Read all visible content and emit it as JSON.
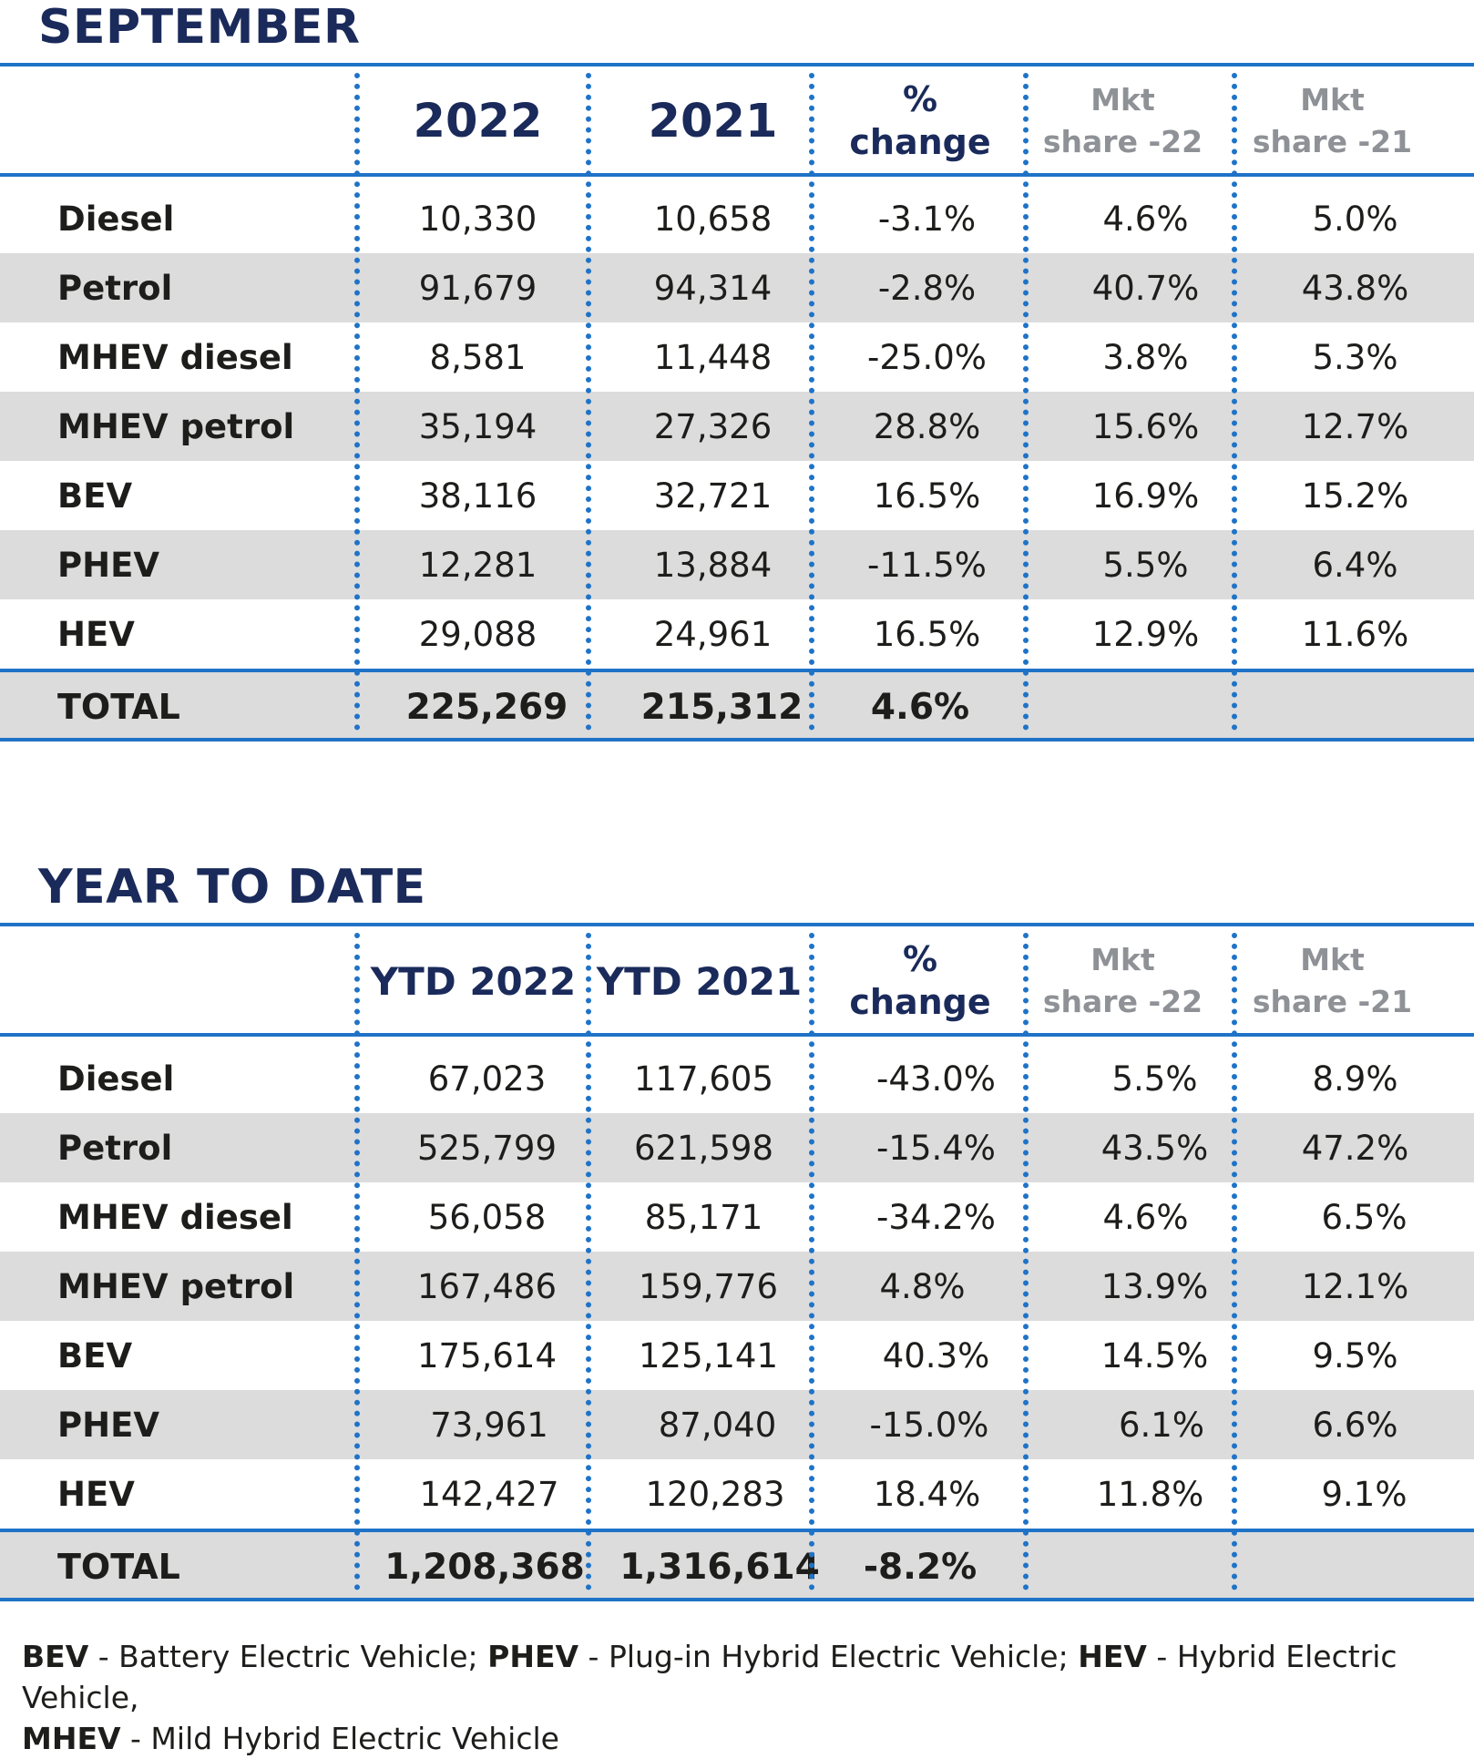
{
  "sections": [
    {
      "title": "SEPTEMBER",
      "headers": {
        "col1": "2022",
        "col2": "2021",
        "change_line1": "%",
        "change_line2": "change",
        "mkt22_line1": "Mkt",
        "mkt22_line2": "share -22",
        "mkt21_line1": "Mkt",
        "mkt21_line2": "share -21"
      },
      "rows": [
        {
          "label": "Diesel",
          "v2022": "10,330",
          "v2021": "10,658",
          "change": "-3.1%",
          "mkt22": "4.6%",
          "mkt21": "5.0%"
        },
        {
          "label": "Petrol",
          "v2022": "91,679",
          "v2021": "94,314",
          "change": "-2.8%",
          "mkt22": "40.7%",
          "mkt21": "43.8%"
        },
        {
          "label": "MHEV diesel",
          "v2022": "8,581",
          "v2021": "11,448",
          "change": "-25.0%",
          "mkt22": "3.8%",
          "mkt21": "5.3%"
        },
        {
          "label": "MHEV petrol",
          "v2022": "35,194",
          "v2021": "27,326",
          "change": "28.8%",
          "mkt22": "15.6%",
          "mkt21": "12.7%"
        },
        {
          "label": "BEV",
          "v2022": "38,116",
          "v2021": "32,721",
          "change": "16.5%",
          "mkt22": "16.9%",
          "mkt21": "15.2%"
        },
        {
          "label": "PHEV",
          "v2022": "12,281",
          "v2021": "13,884",
          "change": "-11.5%",
          "mkt22": "5.5%",
          "mkt21": "6.4%"
        },
        {
          "label": "HEV",
          "v2022": "29,088",
          "v2021": "24,961",
          "change": "16.5%",
          "mkt22": "12.9%",
          "mkt21": "11.6%"
        }
      ],
      "total": {
        "label": "TOTAL",
        "v2022": "225,269",
        "v2021": "215,312",
        "change": "4.6%"
      }
    },
    {
      "title": "YEAR TO DATE",
      "headers": {
        "col1": "YTD 2022",
        "col2": "YTD 2021",
        "change_line1": "%",
        "change_line2": "change",
        "mkt22_line1": "Mkt",
        "mkt22_line2": "share -22",
        "mkt21_line1": "Mkt",
        "mkt21_line2": "share -21"
      },
      "rows": [
        {
          "label": "Diesel",
          "v2022": "67,023",
          "v2021": "117,605",
          "change": "-43.0%",
          "mkt22": "5.5%",
          "mkt21": "8.9%"
        },
        {
          "label": "Petrol",
          "v2022": "525,799",
          "v2021": "621,598",
          "change": "-15.4%",
          "mkt22": "43.5%",
          "mkt21": "47.2%"
        },
        {
          "label": "MHEV diesel",
          "v2022": "56,058",
          "v2021": "85,171",
          "change": "-34.2%",
          "mkt22": "4.6%",
          "mkt21": "6.5%"
        },
        {
          "label": "MHEV petrol",
          "v2022": "167,486",
          "v2021": "159,776",
          "change": "4.8%",
          "mkt22": "13.9%",
          "mkt21": "12.1%"
        },
        {
          "label": "BEV",
          "v2022": "175,614",
          "v2021": "125,141",
          "change": "40.3%",
          "mkt22": "14.5%",
          "mkt21": "9.5%"
        },
        {
          "label": "PHEV",
          "v2022": "73,961",
          "v2021": "87,040",
          "change": "-15.0%",
          "mkt22": "6.1%",
          "mkt21": "6.6%"
        },
        {
          "label": "HEV",
          "v2022": "142,427",
          "v2021": "120,283",
          "change": "18.4%",
          "mkt22": "11.8%",
          "mkt21": "9.1%"
        }
      ],
      "total": {
        "label": "TOTAL",
        "v2022": "1,208,368",
        "v2021": "1,316,614",
        "change": "-8.2%"
      }
    }
  ],
  "footnote": {
    "bev_abbr": "BEV",
    "bev_text": " - Battery Electric Vehicle; ",
    "phev_abbr": "PHEV",
    "phev_text": " - Plug-in Hybrid Electric Vehicle; ",
    "hev_abbr": "HEV",
    "hev_text": " - Hybrid Electric Vehicle,",
    "mhev_abbr": "MHEV",
    "mhev_text": " - Mild Hybrid Electric Vehicle"
  },
  "colors": {
    "accent_blue": "#1f73c7",
    "title_navy": "#1a2a5a",
    "header_grey": "#8e9196",
    "row_shade": "#dcdcdc"
  }
}
